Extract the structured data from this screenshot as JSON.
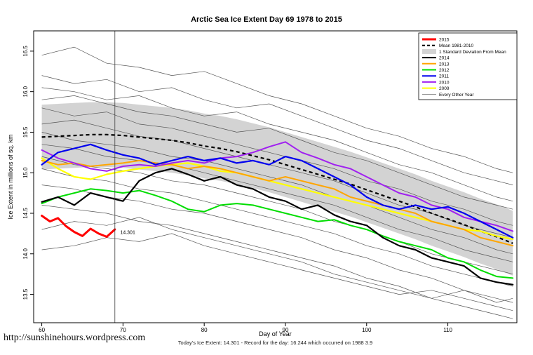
{
  "page": {
    "title": "Arctic Sea Ice Extent Day 69 1978 to 2015",
    "xlabel": "Day of Year",
    "ylabel": "Ice Extent in millions of sq. km",
    "subtitle": "Today's Ice Extent: 14.301  - Record for the day: 16.244 which occurred on 1988 3.9",
    "footer_link": "http://sunshinehours.wordpress.com"
  },
  "chart_data": {
    "type": "line",
    "title": "Arctic Sea Ice Extent Day 69 1978 to 2015",
    "xlabel": "Day of Year",
    "ylabel": "Ice Extent in millions of sq. km",
    "xlim": [
      59,
      118.5
    ],
    "ylim": [
      13.15,
      16.75
    ],
    "xticks": [
      60,
      70,
      80,
      90,
      100,
      110
    ],
    "yticks": [
      13.5,
      14.0,
      14.5,
      15.0,
      15.5,
      16.0,
      16.5
    ],
    "grid": false,
    "legend_position": "top-right",
    "vline_x": 69,
    "annotation": {
      "x": 69.4,
      "y": 14.27,
      "text": "14.301",
      "color": "#FF0000"
    },
    "x": [
      60,
      62,
      64,
      66,
      68,
      70,
      72,
      74,
      76,
      78,
      80,
      82,
      84,
      86,
      88,
      90,
      92,
      94,
      96,
      98,
      100,
      102,
      104,
      106,
      108,
      110,
      112,
      114,
      116,
      118
    ],
    "band": {
      "name": "1 Standard Deviation From Mean",
      "color": "#d3d3d3",
      "x": [
        60,
        62,
        64,
        66,
        68,
        70,
        72,
        74,
        76,
        78,
        80,
        82,
        84,
        86,
        88,
        90,
        92,
        94,
        96,
        98,
        100,
        102,
        104,
        106,
        108,
        110,
        112,
        114,
        116,
        118
      ],
      "upper": [
        15.84,
        15.85,
        15.86,
        15.87,
        15.87,
        15.86,
        15.84,
        15.82,
        15.8,
        15.77,
        15.73,
        15.7,
        15.66,
        15.61,
        15.56,
        15.5,
        15.44,
        15.38,
        15.32,
        15.26,
        15.19,
        15.12,
        15.05,
        14.98,
        14.9,
        14.83,
        14.76,
        14.68,
        14.61,
        14.53
      ],
      "lower": [
        15.04,
        15.05,
        15.06,
        15.07,
        15.07,
        15.06,
        15.04,
        15.02,
        15.0,
        14.97,
        14.93,
        14.9,
        14.86,
        14.81,
        14.76,
        14.7,
        14.64,
        14.58,
        14.52,
        14.46,
        14.39,
        14.32,
        14.25,
        14.18,
        14.1,
        14.03,
        13.96,
        13.88,
        13.81,
        13.73
      ]
    },
    "mean": {
      "name": "Mean 1981-2010",
      "color": "#000000",
      "y": [
        15.44,
        15.45,
        15.46,
        15.47,
        15.47,
        15.46,
        15.44,
        15.42,
        15.4,
        15.37,
        15.33,
        15.3,
        15.26,
        15.21,
        15.16,
        15.1,
        15.04,
        14.98,
        14.92,
        14.86,
        14.79,
        14.72,
        14.65,
        14.58,
        14.5,
        14.43,
        14.36,
        14.28,
        14.21,
        14.13
      ]
    },
    "series": [
      {
        "name": "2009",
        "color": "#FFFF00",
        "width": 2.2,
        "y": [
          15.18,
          15.05,
          14.95,
          14.92,
          14.98,
          15.02,
          15.05,
          15.08,
          15.1,
          15.12,
          15.08,
          15.02,
          15.0,
          14.95,
          14.9,
          14.85,
          14.8,
          14.75,
          14.7,
          14.65,
          14.6,
          14.55,
          14.5,
          14.45,
          14.4,
          14.35,
          14.3,
          14.28,
          14.22,
          14.18
        ]
      },
      {
        "name": "2013",
        "color": "#FFA500",
        "width": 2,
        "y": [
          15.15,
          15.1,
          15.12,
          15.08,
          15.1,
          15.12,
          15.15,
          15.12,
          15.1,
          15.05,
          15.08,
          15.05,
          15.0,
          14.95,
          14.9,
          14.95,
          14.9,
          14.85,
          14.8,
          14.7,
          14.65,
          14.6,
          14.55,
          14.5,
          14.4,
          14.35,
          14.3,
          14.2,
          14.15,
          14.1
        ]
      },
      {
        "name": "2012",
        "color": "#00DD00",
        "width": 2,
        "y": [
          14.62,
          14.7,
          14.75,
          14.8,
          14.78,
          14.75,
          14.78,
          14.72,
          14.65,
          14.55,
          14.52,
          14.6,
          14.62,
          14.6,
          14.55,
          14.5,
          14.45,
          14.4,
          14.42,
          14.35,
          14.3,
          14.22,
          14.15,
          14.1,
          14.05,
          13.95,
          13.9,
          13.8,
          13.72,
          13.7
        ]
      },
      {
        "name": "2010",
        "color": "#A020F0",
        "width": 2,
        "y": [
          15.28,
          15.18,
          15.12,
          15.05,
          15.02,
          15.08,
          15.1,
          15.08,
          15.12,
          15.15,
          15.12,
          15.18,
          15.2,
          15.25,
          15.32,
          15.38,
          15.25,
          15.18,
          15.1,
          15.05,
          14.95,
          14.85,
          14.75,
          14.7,
          14.6,
          14.55,
          14.45,
          14.4,
          14.35,
          14.28
        ]
      },
      {
        "name": "2011",
        "color": "#0000EE",
        "width": 2.2,
        "y": [
          15.1,
          15.25,
          15.3,
          15.35,
          15.28,
          15.22,
          15.18,
          15.1,
          15.15,
          15.2,
          15.15,
          15.18,
          15.12,
          15.15,
          15.1,
          15.2,
          15.15,
          15.05,
          14.95,
          14.85,
          14.7,
          14.6,
          14.55,
          14.6,
          14.55,
          14.58,
          14.5,
          14.4,
          14.3,
          14.2
        ]
      },
      {
        "name": "2014",
        "color": "#000000",
        "width": 2.2,
        "y": [
          14.64,
          14.7,
          14.6,
          14.75,
          14.7,
          14.65,
          14.9,
          15.0,
          15.05,
          14.98,
          14.9,
          14.95,
          14.85,
          14.8,
          14.7,
          14.65,
          14.55,
          14.6,
          14.48,
          14.4,
          14.35,
          14.2,
          14.1,
          14.05,
          13.95,
          13.9,
          13.85,
          13.7,
          13.65,
          13.62
        ]
      },
      {
        "name": "2015",
        "color": "#FF0000",
        "width": 3,
        "x": [
          60,
          61,
          62,
          63,
          64,
          65,
          66,
          67,
          68,
          69
        ],
        "y": [
          14.47,
          14.4,
          14.44,
          14.34,
          14.27,
          14.22,
          14.31,
          14.25,
          14.21,
          14.301
        ]
      }
    ],
    "other_years": {
      "name": "Every Other Year",
      "color": "#555555",
      "x": [
        60,
        64,
        68,
        72,
        76,
        80,
        84,
        88,
        92,
        96,
        100,
        104,
        108,
        112,
        116,
        118
      ],
      "lines": [
        {
          "y": [
            16.45,
            16.55,
            16.35,
            16.3,
            16.2,
            16.25,
            16.1,
            15.95,
            15.85,
            15.7,
            15.55,
            15.45,
            15.3,
            15.2,
            15.05,
            15.0
          ]
        },
        {
          "y": [
            16.2,
            16.1,
            16.15,
            16.0,
            16.05,
            15.9,
            15.8,
            15.85,
            15.7,
            15.55,
            15.4,
            15.3,
            15.15,
            15.0,
            14.9,
            14.85
          ]
        },
        {
          "y": [
            16.05,
            16.0,
            15.9,
            15.95,
            15.8,
            15.7,
            15.75,
            15.6,
            15.5,
            15.4,
            15.25,
            15.1,
            15.0,
            14.85,
            14.7,
            14.65
          ]
        },
        {
          "y": [
            15.9,
            15.95,
            15.85,
            15.75,
            15.7,
            15.6,
            15.5,
            15.55,
            15.4,
            15.25,
            15.15,
            15.0,
            14.85,
            14.7,
            14.6,
            14.55
          ]
        },
        {
          "y": [
            15.8,
            15.7,
            15.75,
            15.6,
            15.55,
            15.45,
            15.35,
            15.25,
            15.15,
            15.05,
            14.9,
            14.8,
            14.65,
            14.55,
            14.4,
            14.35
          ]
        },
        {
          "y": [
            15.6,
            15.65,
            15.55,
            15.45,
            15.4,
            15.3,
            15.2,
            15.1,
            15.0,
            14.9,
            14.75,
            14.6,
            14.5,
            14.35,
            14.25,
            14.2
          ]
        },
        {
          "y": [
            15.5,
            15.4,
            15.35,
            15.3,
            15.2,
            15.15,
            15.05,
            14.95,
            14.85,
            14.7,
            14.6,
            14.45,
            14.3,
            14.2,
            14.05,
            14.0
          ]
        },
        {
          "y": [
            15.35,
            15.3,
            15.2,
            15.15,
            15.1,
            15.0,
            14.9,
            14.8,
            14.7,
            14.6,
            14.45,
            14.3,
            14.2,
            14.05,
            13.95,
            13.9
          ]
        },
        {
          "y": [
            15.2,
            15.1,
            15.05,
            15.0,
            14.9,
            14.85,
            14.75,
            14.65,
            14.55,
            14.4,
            14.3,
            14.15,
            14.0,
            13.9,
            13.8,
            13.75
          ]
        },
        {
          "y": [
            15.05,
            14.95,
            14.9,
            14.8,
            14.75,
            14.65,
            14.55,
            14.45,
            14.35,
            14.25,
            14.1,
            14.0,
            13.85,
            13.75,
            13.65,
            13.6
          ]
        },
        {
          "y": [
            14.85,
            14.8,
            14.7,
            14.65,
            14.55,
            14.5,
            14.4,
            14.3,
            14.2,
            14.05,
            13.95,
            13.8,
            13.7,
            13.55,
            13.45,
            13.4
          ]
        },
        {
          "y": [
            14.6,
            14.55,
            14.5,
            14.4,
            14.35,
            14.25,
            14.15,
            14.05,
            13.95,
            13.85,
            13.7,
            13.6,
            13.45,
            13.35,
            13.25,
            13.2
          ]
        },
        {
          "y": [
            14.3,
            14.4,
            14.35,
            14.45,
            14.3,
            14.2,
            14.1,
            14.0,
            13.9,
            13.75,
            13.65,
            13.55,
            13.45,
            13.55,
            13.4,
            13.45
          ]
        },
        {
          "y": [
            14.05,
            14.1,
            14.2,
            14.15,
            14.25,
            14.1,
            14.0,
            13.9,
            13.8,
            13.7,
            13.6,
            13.5,
            13.55,
            13.45,
            13.35,
            13.3
          ]
        }
      ]
    },
    "legend": [
      {
        "label": "2015",
        "type": "line",
        "color": "#FF0000",
        "width": 3
      },
      {
        "label": "Mean 1981-2010",
        "type": "dash",
        "color": "#000000",
        "width": 2
      },
      {
        "label": "1 Standard Deviation From Mean",
        "type": "band",
        "color": "#d3d3d3"
      },
      {
        "label": "2014",
        "type": "line",
        "color": "#000000",
        "width": 2
      },
      {
        "label": "2013",
        "type": "line",
        "color": "#FFA500",
        "width": 2
      },
      {
        "label": "2012",
        "type": "line",
        "color": "#00DD00",
        "width": 2
      },
      {
        "label": "2011",
        "type": "line",
        "color": "#0000EE",
        "width": 2
      },
      {
        "label": "2010",
        "type": "line",
        "color": "#A020F0",
        "width": 2
      },
      {
        "label": "2009",
        "type": "line",
        "color": "#FFFF00",
        "width": 2
      },
      {
        "label": "Every Other Year",
        "type": "thin",
        "color": "#555555",
        "width": 0.7
      }
    ]
  }
}
